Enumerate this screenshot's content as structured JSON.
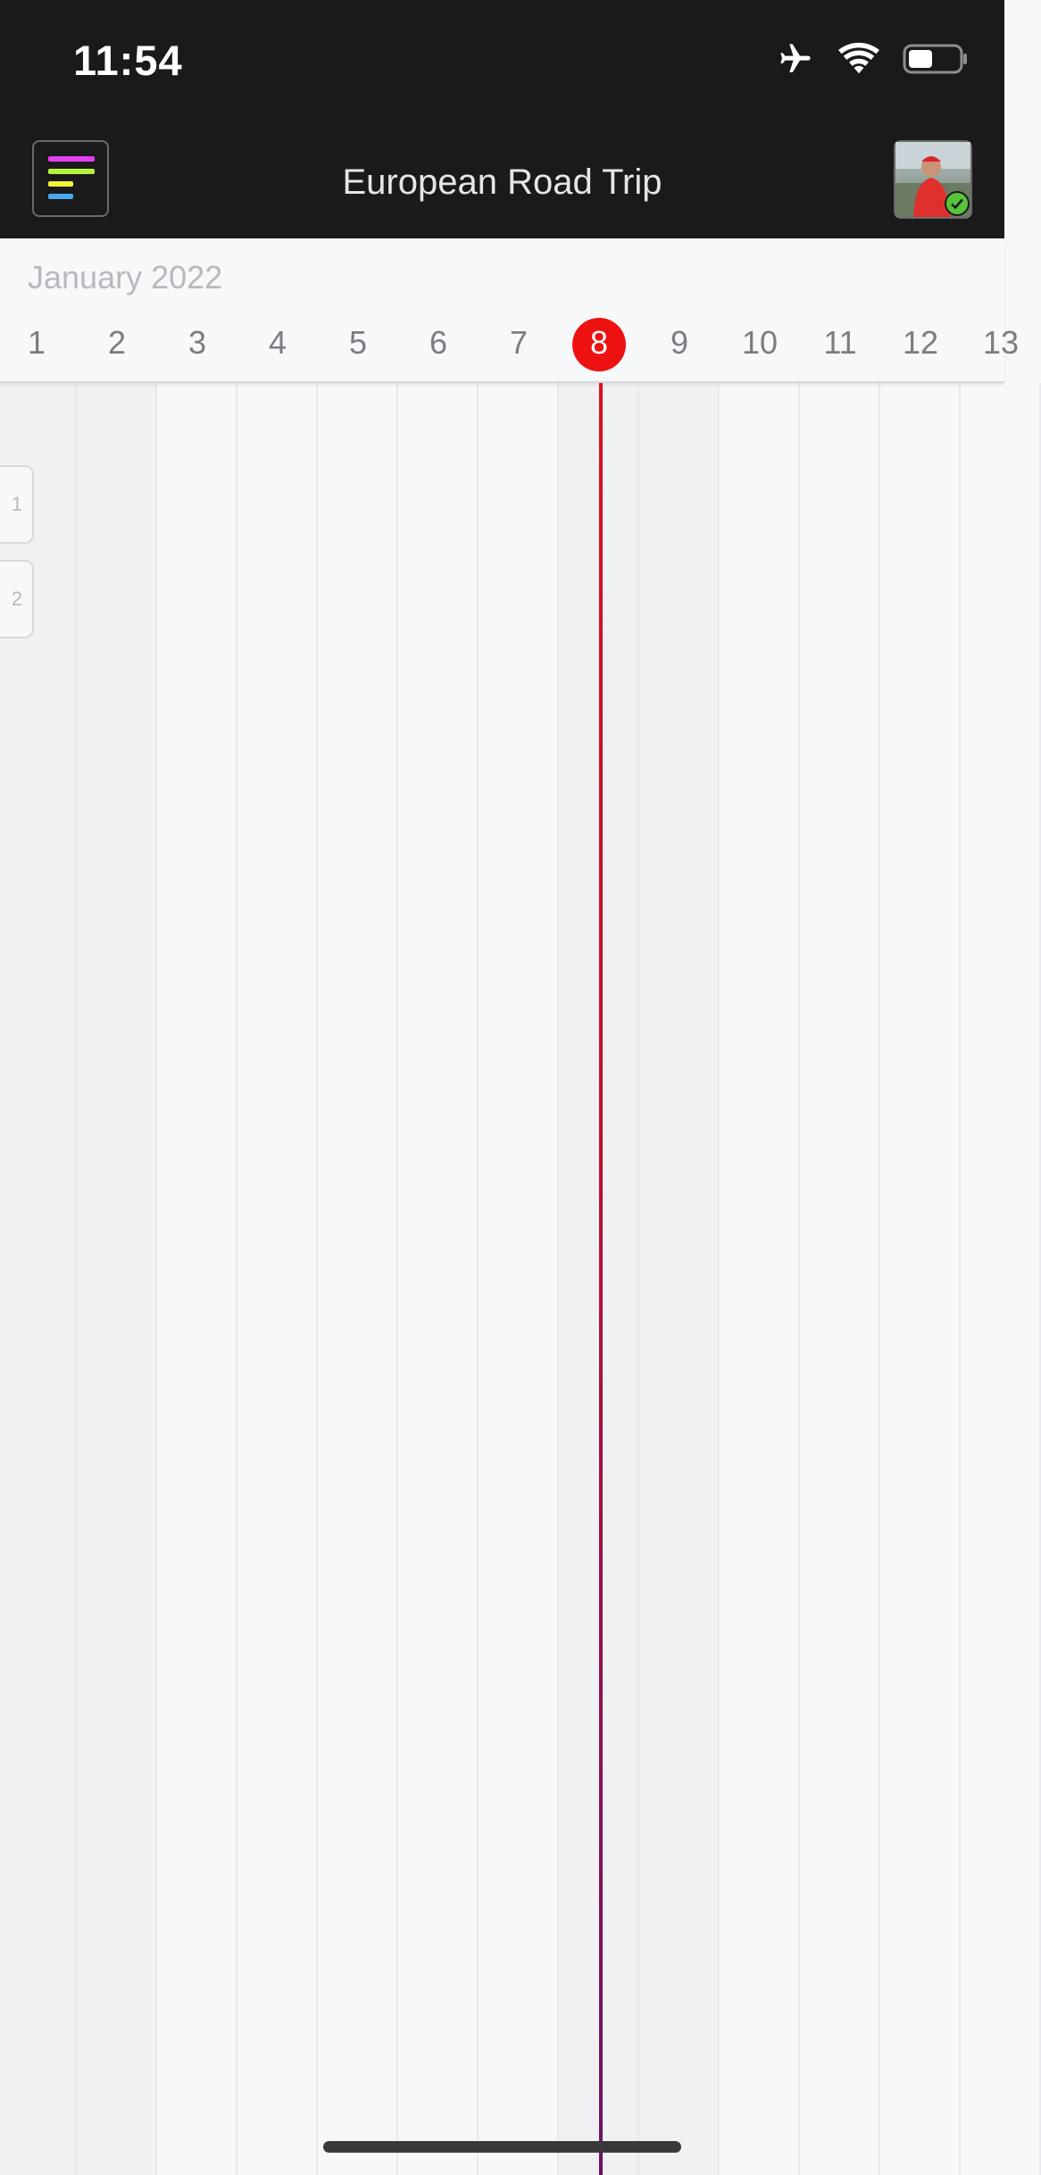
{
  "status_bar": {
    "time": "11:54",
    "icons": [
      "airplane-icon",
      "wifi-icon",
      "battery-icon"
    ]
  },
  "nav": {
    "title": "European Road Trip",
    "menu_icon": "colored-lines-menu-icon",
    "menu_colors": [
      "#e040f0",
      "#b5f23a",
      "#f2f23a",
      "#4aa8f0"
    ],
    "avatar_status": "online-check-icon",
    "avatar_status_color": "#57c53a"
  },
  "calendar": {
    "month": "January 2022",
    "today": "8",
    "today_color": "#ee1111",
    "days": [
      "1",
      "2",
      "3",
      "4",
      "5",
      "6",
      "7",
      "8",
      "9",
      "10",
      "11",
      "12",
      "13"
    ],
    "weekend_days": [
      "1",
      "2",
      "8",
      "9"
    ]
  },
  "rows": [
    {
      "label": "1"
    },
    {
      "label": "2"
    }
  ]
}
